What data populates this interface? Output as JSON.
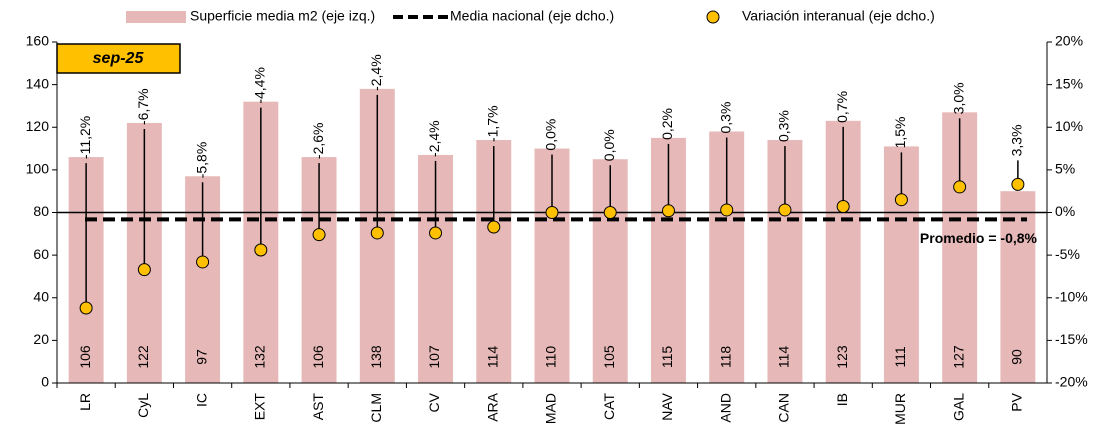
{
  "chart_data": {
    "type": "bar",
    "badge": "sep-25",
    "categories": [
      "LR",
      "CyL",
      "IC",
      "EXT",
      "AST",
      "CLM",
      "CV",
      "ARA",
      "MAD",
      "CAT",
      "NAV",
      "AND",
      "CAN",
      "IB",
      "MUR",
      "GAL",
      "PV"
    ],
    "series": [
      {
        "name": "Superficie media m2 (eje izq.)",
        "color": "#e6b8b7",
        "values": [
          106,
          122,
          97,
          132,
          106,
          138,
          107,
          114,
          110,
          105,
          115,
          118,
          114,
          123,
          111,
          127,
          90
        ]
      },
      {
        "name": "Variación interanual (eje dcho.)",
        "color": "#ffc000",
        "axis": "y2",
        "values": [
          -11.2,
          -6.7,
          -5.8,
          -4.4,
          -2.6,
          -2.4,
          -2.4,
          -1.7,
          0.0,
          0.0,
          0.2,
          0.3,
          0.3,
          0.7,
          1.5,
          3.0,
          3.3
        ],
        "value_labels": [
          "-11,2%",
          "-6,7%",
          "-5,8%",
          "-4,4%",
          "-2,6%",
          "-2,4%",
          "-2,4%",
          "-1,7%",
          "0,0%",
          "0,0%",
          "0,2%",
          "0,3%",
          "0,3%",
          "0,7%",
          "1,5%",
          "3,0%",
          "3,3%"
        ]
      }
    ],
    "national_mean": {
      "name": "Media nacional (eje dcho.)",
      "color": "#000000",
      "axis": "y2",
      "value": -0.8,
      "label": "Promedio = -0,8%"
    },
    "ylim": [
      0,
      160
    ],
    "yticks": [
      0,
      20,
      40,
      60,
      80,
      100,
      120,
      140,
      160
    ],
    "y2lim": [
      -20,
      20
    ],
    "y2ticks": [
      {
        "value": -20,
        "label": "-20%"
      },
      {
        "value": -15,
        "label": "-15%"
      },
      {
        "value": -10,
        "label": "-10%"
      },
      {
        "value": -5,
        "label": "-5%"
      },
      {
        "value": 0,
        "label": "0%"
      },
      {
        "value": 5,
        "label": "5%"
      },
      {
        "value": 10,
        "label": "10%"
      },
      {
        "value": 15,
        "label": "15%"
      },
      {
        "value": 20,
        "label": "20%"
      }
    ]
  }
}
